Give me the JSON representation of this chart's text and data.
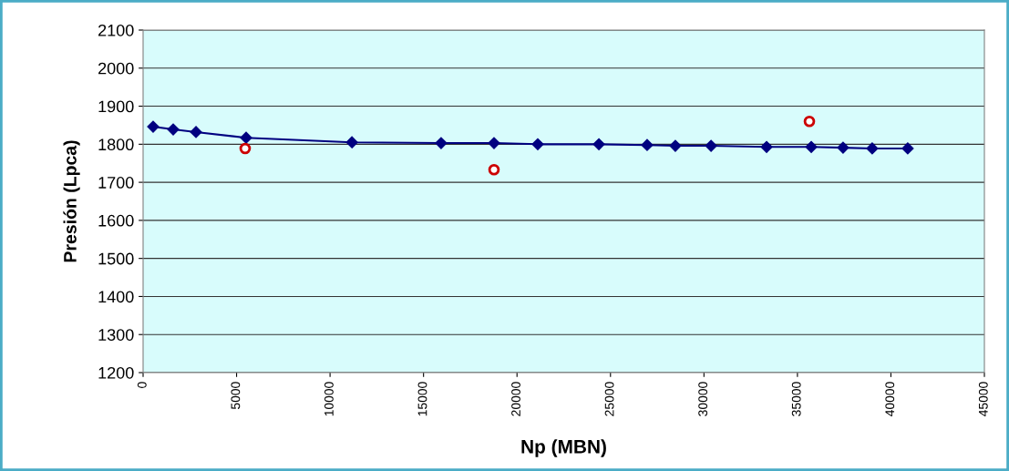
{
  "chart_data": {
    "type": "line",
    "xlabel": "Np (MBN)",
    "ylabel": "Presión (Lpca)",
    "xlim": [
      0,
      45000
    ],
    "xticks": [
      0,
      5000,
      10000,
      15000,
      20000,
      25000,
      30000,
      35000,
      40000,
      45000
    ],
    "ylim": [
      1200,
      2100
    ],
    "yticks": [
      1200,
      1300,
      1400,
      1500,
      1600,
      1700,
      1800,
      1900,
      2000,
      2100
    ],
    "grid": "y",
    "series": [
      {
        "color": "#000080",
        "marker": "diamond",
        "x": [
          536,
          1610,
          2830,
          5510,
          11170,
          15940,
          18770,
          21110,
          24380,
          26960,
          28470,
          30380,
          33350,
          35740,
          37440,
          39000,
          40900
        ],
        "values": [
          1846,
          1839,
          1832,
          1817,
          1805,
          1803,
          1803,
          1800,
          1800,
          1798,
          1796,
          1796,
          1793,
          1793,
          1791,
          1789,
          1789
        ]
      },
      {
        "type": "scatter",
        "color": "#cc0000",
        "marker": "circle",
        "x": [
          5460,
          18770,
          35640
        ],
        "values": [
          1789,
          1733,
          1860
        ]
      }
    ]
  }
}
